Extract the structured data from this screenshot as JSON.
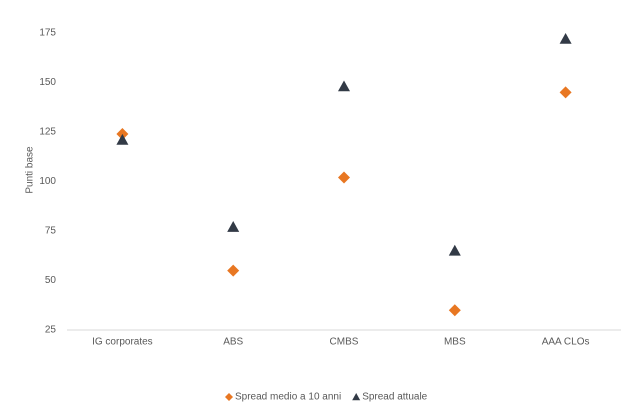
{
  "chart_data": {
    "type": "scatter",
    "y_label": "Punti base",
    "categories": [
      "IG corporates",
      "ABS",
      "CMBS",
      "MBS",
      "AAA CLOs"
    ],
    "series": [
      {
        "name": "Spread medio a 10 anni",
        "color": "#e87722",
        "marker": "diamond",
        "values": [
          124,
          55,
          102,
          35,
          145
        ]
      },
      {
        "name": "Spread attuale",
        "color": "#323a46",
        "marker": "triangle",
        "values": [
          121,
          77,
          148,
          65,
          172
        ]
      }
    ],
    "ylim": [
      25,
      175
    ],
    "yticks": [
      25,
      50,
      75,
      100,
      125,
      150,
      175
    ],
    "grid": false,
    "legend": "bottom"
  }
}
